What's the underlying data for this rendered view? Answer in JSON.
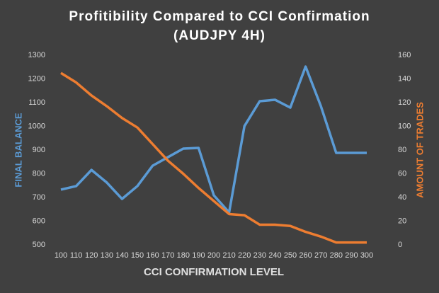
{
  "chart_data": {
    "type": "line",
    "title": "Profitibility Compared to CCI Confirmation",
    "subtitle": "(AUDJPY 4H)",
    "x_label": "CCI CONFIRMATION LEVEL",
    "y_label": "FINAL BALANCE",
    "y2_label": "AMOUNT OF TRADES",
    "categories": [
      100,
      110,
      120,
      130,
      140,
      150,
      160,
      170,
      180,
      190,
      200,
      210,
      220,
      230,
      240,
      250,
      260,
      270,
      280,
      290,
      300
    ],
    "series": [
      {
        "name": "FINAL BALANCE",
        "color": "#5b9bd5",
        "values": [
          733,
          748,
          816,
          763,
          694,
          748,
          834,
          870,
          906,
          909,
          709,
          637,
          1001,
          1106,
          1112,
          1079,
          1252,
          1085,
          888,
          888,
          888
        ]
      },
      {
        "name": "AMOUNT OF TRADES",
        "color": "#ed7d31",
        "axis": "y2",
        "values": [
          145,
          137,
          126,
          117,
          107,
          99,
          85,
          71,
          60,
          48,
          37,
          26,
          25,
          17,
          17,
          16,
          11,
          7,
          2,
          2,
          2
        ]
      }
    ],
    "ylim": [
      500,
      1300
    ],
    "yticks": [
      500,
      600,
      700,
      800,
      900,
      1000,
      1100,
      1200,
      1300
    ],
    "y2lim": [
      0,
      160
    ],
    "y2ticks": [
      0,
      20,
      40,
      60,
      80,
      100,
      120,
      140,
      160
    ],
    "grid": false
  }
}
